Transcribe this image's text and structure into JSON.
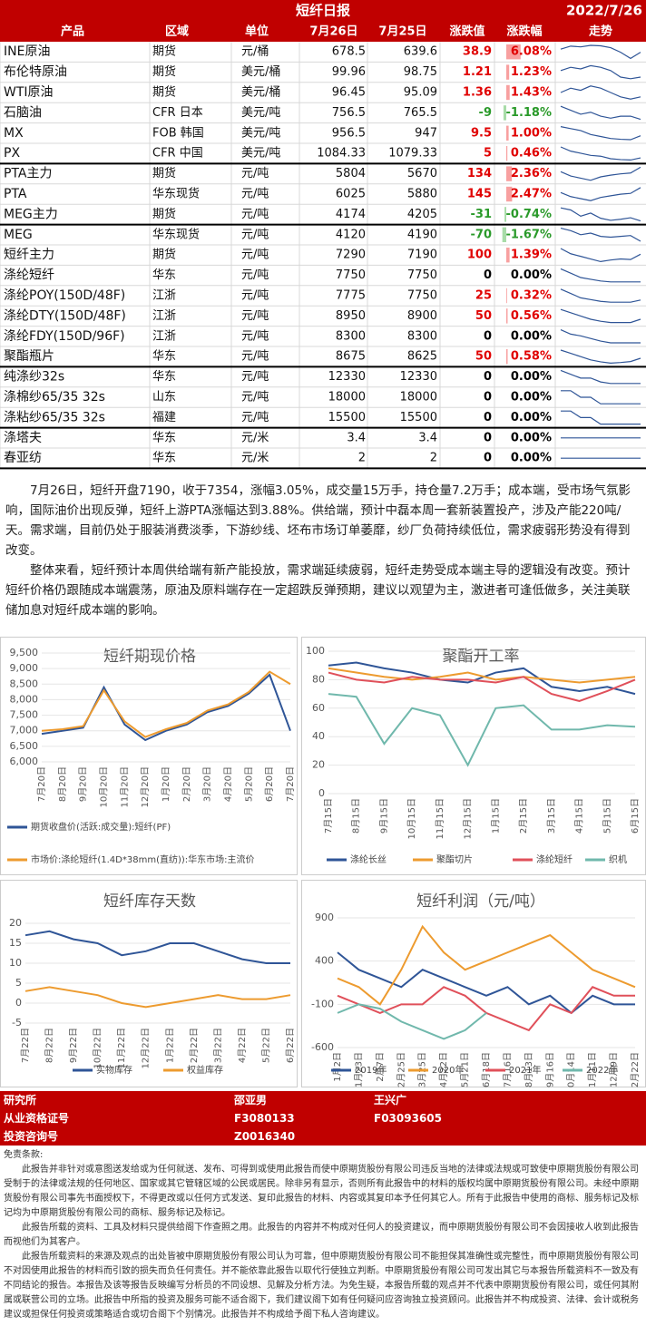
{
  "header": {
    "title": "短纤日报",
    "date": "2022/7/26"
  },
  "table": {
    "header": [
      "产品",
      "区域",
      "单位",
      "7月26日",
      "7月25日",
      "涨跌值",
      "涨跌幅",
      "走势"
    ],
    "rows": [
      [
        "INE原油",
        "期货",
        "元/桶",
        "678.5",
        "639.6",
        "38.9",
        "6.08%"
      ],
      [
        "布伦特原油",
        "期货",
        "美元/桶",
        "99.96",
        "98.75",
        "1.21",
        "1.23%"
      ],
      [
        "WTI原油",
        "期货",
        "美元/桶",
        "96.45",
        "95.09",
        "1.36",
        "1.43%"
      ],
      [
        "石脑油",
        "CFR 日本",
        "美元/吨",
        "756.5",
        "765.5",
        "-9",
        "-1.18%"
      ],
      [
        "MX",
        "FOB 韩国",
        "美元/吨",
        "956.5",
        "947",
        "9.5",
        "1.00%"
      ],
      [
        "PX",
        "CFR 中国",
        "美元/吨",
        "1084.33",
        "1079.33",
        "5",
        "0.46%"
      ],
      [
        "PTA主力",
        "期货",
        "元/吨",
        "5804",
        "5670",
        "134",
        "2.36%"
      ],
      [
        "PTA",
        "华东现货",
        "元/吨",
        "6025",
        "5880",
        "145",
        "2.47%"
      ],
      [
        "MEG主力",
        "期货",
        "元/吨",
        "4174",
        "4205",
        "-31",
        "-0.74%"
      ],
      [
        "MEG",
        "华东现货",
        "元/吨",
        "4120",
        "4190",
        "-70",
        "-1.67%"
      ],
      [
        "短纤主力",
        "期货",
        "元/吨",
        "7290",
        "7190",
        "100",
        "1.39%"
      ],
      [
        "涤纶短纤",
        "华东",
        "元/吨",
        "7750",
        "7750",
        "0",
        "0.00%"
      ],
      [
        "涤纶POY(150D/48F)",
        "江浙",
        "元/吨",
        "7775",
        "7750",
        "25",
        "0.32%"
      ],
      [
        "涤纶DTY(150D/48F)",
        "江浙",
        "元/吨",
        "8950",
        "8900",
        "50",
        "0.56%"
      ],
      [
        "涤纶FDY(150D/96F)",
        "江浙",
        "元/吨",
        "8300",
        "8300",
        "0",
        "0.00%"
      ],
      [
        "聚酯瓶片",
        "华东",
        "元/吨",
        "8675",
        "8625",
        "50",
        "0.58%"
      ],
      [
        "纯涤纱32s",
        "华东",
        "元/吨",
        "12330",
        "12330",
        "0",
        "0.00%"
      ],
      [
        "涤棉纱65/35 32s",
        "山东",
        "元/吨",
        "18000",
        "18000",
        "0",
        "0.00%"
      ],
      [
        "涤粘纱65/35 32s",
        "福建",
        "元/吨",
        "15500",
        "15500",
        "0",
        "0.00%"
      ],
      [
        "涤塔夫",
        "华东",
        "元/米",
        "3.4",
        "3.4",
        "0",
        "0.00%"
      ],
      [
        "春亚纺",
        "华东",
        "元/米",
        "2",
        "2",
        "0",
        "0.00%"
      ]
    ],
    "trends": [
      [
        700,
        720,
        715,
        725,
        722,
        710,
        680,
        640,
        680
      ],
      [
        104,
        106,
        105,
        107,
        106,
        104,
        100,
        99,
        100
      ],
      [
        98,
        100,
        99,
        101,
        100,
        98,
        96,
        95,
        96
      ],
      [
        790,
        780,
        770,
        775,
        765,
        760,
        765,
        765,
        757
      ],
      [
        980,
        975,
        970,
        960,
        955,
        950,
        948,
        947,
        957
      ],
      [
        1110,
        1100,
        1095,
        1090,
        1088,
        1082,
        1080,
        1079,
        1084
      ],
      [
        5700,
        5600,
        5550,
        5500,
        5580,
        5620,
        5650,
        5670,
        5804
      ],
      [
        5900,
        5800,
        5750,
        5700,
        5780,
        5820,
        5860,
        5880,
        6025
      ],
      [
        4300,
        4280,
        4220,
        4250,
        4200,
        4180,
        4190,
        4205,
        4174
      ],
      [
        4280,
        4250,
        4200,
        4220,
        4180,
        4170,
        4180,
        4190,
        4120
      ],
      [
        7400,
        7300,
        7250,
        7200,
        7150,
        7180,
        7200,
        7190,
        7290
      ],
      [
        7900,
        7850,
        7800,
        7780,
        7760,
        7750,
        7750,
        7750,
        7750
      ],
      [
        7900,
        7850,
        7800,
        7780,
        7760,
        7750,
        7750,
        7750,
        7775
      ],
      [
        9100,
        9050,
        9000,
        8950,
        8920,
        8900,
        8900,
        8900,
        8950
      ],
      [
        8450,
        8400,
        8380,
        8350,
        8320,
        8300,
        8300,
        8300,
        8300
      ],
      [
        8800,
        8750,
        8700,
        8650,
        8620,
        8600,
        8610,
        8625,
        8675
      ],
      [
        12500,
        12450,
        12400,
        12400,
        12350,
        12330,
        12330,
        12330,
        12330
      ],
      [
        18200,
        18200,
        18100,
        18100,
        18000,
        18000,
        18000,
        18000,
        18000
      ],
      [
        15700,
        15700,
        15600,
        15600,
        15500,
        15500,
        15500,
        15500,
        15500
      ],
      [
        3.4,
        3.4,
        3.4,
        3.4,
        3.4,
        3.4,
        3.4,
        3.4,
        3.4
      ],
      [
        2,
        2,
        2,
        2,
        2,
        2,
        2,
        2,
        2
      ]
    ]
  },
  "commentary": [
    "7月26日，短纤开盘7190，收于7354，涨幅3.05%，成交量15万手，持仓量7.2万手；成本端，受市场气氛影响，国际油价出现反弹，短纤上游PTA涨幅达到3.88%。供给端，预计中磊本周一套新装置投产，涉及产能220吨/天。需求端，目前仍处于服装消费淡季，下游纱线、坯布市场订单萎靡，纱厂负荷持续低位，需求疲弱形势没有得到改变。",
    "整体来看，短纤预计本周供给端有新产能投放，需求端延续疲弱，短纤走势受成本端主导的逻辑没有改变。预计短纤价格仍跟随成本端震荡，原油及原料端存在一定超跌反弹预期，建议以观望为主，激进者可逢低做多，关注美联储加息对短纤成本端的影响。"
  ],
  "chart_data": [
    {
      "type": "line",
      "title": "短纤期现价格",
      "categories": [
        "7月20日",
        "8月20日",
        "9月20日",
        "10月20日",
        "11月20日",
        "12月20日",
        "1月20日",
        "2月20日",
        "3月20日",
        "4月20日",
        "5月20日",
        "6月20日",
        "7月20日"
      ],
      "series": [
        {
          "name": "期货收盘价(活跃:成交量):短纤(PF)",
          "color": "#2f5597",
          "values": [
            6900,
            7000,
            7100,
            8400,
            7200,
            6700,
            7000,
            7200,
            7600,
            7800,
            8200,
            8800,
            7000
          ]
        },
        {
          "name": "市场价:涤纶短纤(1.4D*38mm(直纺)):华东市场:主流价",
          "color": "#ed9b2f",
          "values": [
            7000,
            7050,
            7150,
            8300,
            7300,
            6800,
            7050,
            7250,
            7650,
            7850,
            8250,
            8900,
            8500
          ]
        }
      ],
      "ylim": [
        6000,
        9500
      ],
      "yticks": [
        {
          "value": 6000,
          "label": "6,000"
        },
        {
          "value": 6500,
          "label": "6,500"
        },
        {
          "value": 7000,
          "label": "7,000"
        },
        {
          "value": 7500,
          "label": "7,500"
        },
        {
          "value": 8000,
          "label": "8,000"
        },
        {
          "value": 8500,
          "label": "8,500"
        },
        {
          "value": 9000,
          "label": "9,000"
        },
        {
          "value": 9500,
          "label": "9,500"
        }
      ]
    },
    {
      "type": "line",
      "title": "聚酯开工率",
      "categories": [
        "7月15日",
        "8月15日",
        "9月15日",
        "10月15日",
        "11月15日",
        "12月15日",
        "1月15日",
        "2月15日",
        "3月15日",
        "4月15日",
        "5月15日",
        "6月15日"
      ],
      "series": [
        {
          "name": "涤纶长丝",
          "color": "#2f5597",
          "values": [
            90,
            92,
            88,
            85,
            80,
            78,
            85,
            88,
            75,
            72,
            75,
            70
          ]
        },
        {
          "name": "聚酯切片",
          "color": "#ed9b2f",
          "values": [
            88,
            85,
            82,
            80,
            82,
            85,
            80,
            82,
            80,
            78,
            80,
            82
          ]
        },
        {
          "name": "涤纶短纤",
          "color": "#e0505a",
          "values": [
            85,
            80,
            78,
            82,
            80,
            80,
            78,
            82,
            70,
            65,
            72,
            80
          ]
        },
        {
          "name": "织机",
          "color": "#70b8ac",
          "values": [
            70,
            68,
            35,
            60,
            55,
            20,
            60,
            62,
            45,
            45,
            48,
            47
          ]
        }
      ],
      "ylim": [
        0,
        100
      ],
      "yticks": [
        0,
        20,
        40,
        60,
        80,
        100
      ]
    },
    {
      "type": "line",
      "title": "短纤库存天数",
      "categories": [
        "7月22日",
        "8月22日",
        "9月22日",
        "10月22日",
        "11月22日",
        "12月22日",
        "1月22日",
        "2月22日",
        "3月22日",
        "4月22日",
        "5月22日",
        "6月22日"
      ],
      "series": [
        {
          "name": "实物库存",
          "color": "#2f5597",
          "values": [
            17,
            18,
            16,
            15,
            12,
            13,
            15,
            15,
            13,
            11,
            10,
            10
          ]
        },
        {
          "name": "权益库存",
          "color": "#ed9b2f",
          "values": [
            3,
            4,
            3,
            2,
            0,
            -1,
            0,
            1,
            2,
            1,
            1,
            2
          ]
        }
      ],
      "ylim": [
        -5,
        20
      ],
      "yticks": [
        -5,
        0,
        5,
        10,
        15,
        20
      ]
    },
    {
      "type": "line",
      "title": "短纤利润（元/吨）",
      "categories": [
        "1月2日",
        "1月23日",
        "2月7日",
        "2月25日",
        "3月25日",
        "4月22日",
        "5月21日",
        "6月18日",
        "7月16日",
        "8月13日",
        "9月16日",
        "10月14日",
        "11月11日",
        "12月9日",
        "12月22日"
      ],
      "series": [
        {
          "name": "2019年",
          "color": "#2f5597",
          "values": [
            500,
            300,
            200,
            100,
            300,
            200,
            100,
            0,
            100,
            -100,
            0,
            -200,
            0,
            -100,
            -100
          ]
        },
        {
          "name": "2020年",
          "color": "#ed9b2f",
          "values": [
            200,
            100,
            -100,
            300,
            800,
            500,
            300,
            400,
            500,
            600,
            700,
            500,
            300,
            200,
            100
          ]
        },
        {
          "name": "2021年",
          "color": "#e0505a",
          "values": [
            0,
            -100,
            -200,
            -100,
            -100,
            100,
            0,
            -200,
            -300,
            -400,
            -100,
            -200,
            100,
            0,
            0
          ]
        },
        {
          "name": "2022年",
          "color": "#70b8ac",
          "values": [
            -200,
            -100,
            -150,
            -300,
            -400,
            -500,
            -400,
            -200,
            null,
            null,
            null,
            null,
            null,
            null,
            null
          ]
        }
      ],
      "ylim": [
        -600,
        900
      ],
      "yticks": [
        -600,
        -100,
        400,
        900
      ]
    }
  ],
  "contacts": [
    [
      "研究所",
      "邵亚男",
      "王兴广"
    ],
    [
      "从业资格证号",
      "F3080133",
      "F03093605"
    ],
    [
      "投资咨询号",
      "Z0016340"
    ]
  ],
  "disclaimer": {
    "title": "免责条款:",
    "paragraphs": [
      "此报告并非针对或意图送发给或为任何就送、发布、可得到或使用此报告而使中原期货股份有限公司违反当地的法律或法规或可致使中原期货股份有限公司受制于的法律或法规的任何地区、国家或其它管辖区域的公民或居民。除非另有显示，否则所有此报告中的材料的版权均属中原期货股份有限公司。未经中原期货股份有限公司事先书面授权下，不得更改或以任何方式发送、复印此报告的材料、内容或其复印本予任何其它人。所有于此报告中使用的商标、服务标记及标记均为中原期货股份有限公司的商标、服务标记及标记。",
      "此报告所载的资料、工具及材料只提供给阁下作查照之用。此报告的内容并不构成对任何人的投资建议，而中原期货股份有限公司不会因接收人收到此报告而视他们为其客户。",
      "此报告所载资料的来源及观点的出处皆被中原期货股份有限公司认为可靠，但中原期货股份有限公司不能担保其准确性或完整性，而中原期货股份有限公司不对因使用此报告的材料而引致的损失而负任何责任。并不能依靠此报告以取代行使独立判断。中原期货股份有限公司可发出其它与本报告所载资料不一致及有不同结论的报告。本报告及该等报告反映编写分析员的不同设想、见解及分析方法。为免生疑，本报告所载的观点并不代表中原期货股份有限公司，或任何其附属或联营公司的立场。此报告中所指的投资及服务可能不适合阁下，我们建议阁下如有任何疑问应咨询独立投资顾问。此报告并不构成投资、法律、会计或税务建议或担保任何投资或策略适合或切合阁下个别情况。此报告并不构成给予阁下私人咨询建议。"
    ]
  }
}
